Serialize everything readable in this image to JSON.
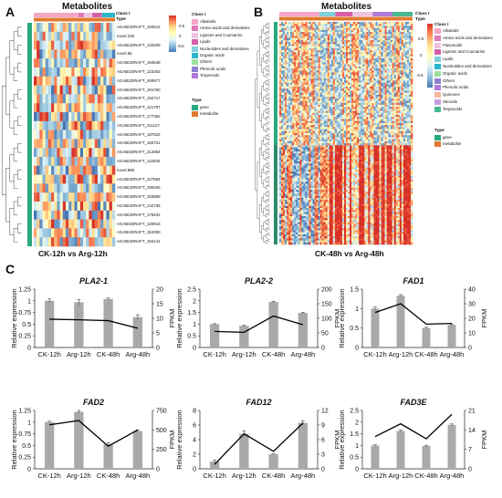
{
  "figure": {
    "panel_labels": [
      "A",
      "B",
      "C"
    ],
    "heatmap_a": {
      "title": "Metabolites",
      "caption": "CK-12h vs Arg-12h",
      "row_labels": [
        "AGABI2DRAFT_194512",
        "novel.235",
        "AGABI2DRAFT_120209",
        "novel.65",
        "AGABI2DRAFT_194648",
        "AGABI2DRAFT_123463",
        "AGABI2DRAFT_209977",
        "AGABI2DRAFT_181760",
        "AGABI2DRAFT_192717",
        "AGABI2DRAFT_121797",
        "AGABI2DRAFT_177352",
        "AGABI2DRAFT_211127",
        "AGABI2DRAFT_187622",
        "AGABI2DRAFT_183721",
        "AGABI2DRAFT_212854",
        "AGABI2DRAFT_116205",
        "novel.898",
        "AGABI2DRAFT_227554",
        "AGABI2DRAFT_190206",
        "AGABI2DRAFT_183809",
        "AGABI2DRAFT_142735",
        "AGABI2DRAFT_179422",
        "AGABI2DRAFT_120913",
        "AGABI2DRAFT_154300",
        "AGABI2DRAFT_194141"
      ],
      "scale_ticks": [
        "0.5",
        "0",
        "-0.5"
      ],
      "legend_class_title": "Class I",
      "legend_class_header": "Type",
      "classes": [
        "Alkaloids",
        "Amino acids and derivatives",
        "Lignans and Coumarins",
        "Lipids",
        "Nucleotides and derivatives",
        "Organic acids",
        "Others",
        "Phenolic acids",
        "Terpenoids"
      ],
      "type_title": "Type",
      "types": [
        "gene",
        "metabolite"
      ]
    },
    "heatmap_b": {
      "title": "Metabolites",
      "caption": "CK-48h vs Arg-48h",
      "scale_ticks": [
        "0.5",
        "0",
        "-0.5"
      ],
      "legend_class_title": "Class I",
      "legend_class_header": "Type",
      "classes": [
        "Alkaloids",
        "Amino acids and derivatives",
        "Flavonoids",
        "Lignans and Coumarins",
        "Lipids",
        "Nucleotides and derivatives",
        "Organic acids",
        "Others",
        "Phenolic acids",
        "Quinones",
        "Steroids",
        "Terpenoids"
      ],
      "type_title": "Type",
      "types": [
        "gene",
        "metabolite"
      ]
    },
    "colors": {
      "class_colors": [
        "#f4a6c6",
        "#e07ab8",
        "#f0c4e0",
        "#d65fa8",
        "#7fd0dc",
        "#29b6c8",
        "#9ae0a0",
        "#8f7fd0",
        "#b07ad8",
        "#f5b7a0",
        "#c8a0e0",
        "#4ab890"
      ],
      "gene_type": "#2aa880",
      "metabolite_type": "#e07a30",
      "bar": "#a9a9a9",
      "line": "#000000"
    }
  },
  "chart_data": [
    {
      "type": "bar",
      "title": "PLA2-1",
      "categories": [
        "CK-12h",
        "Arg-12h",
        "CK-48h",
        "Arg-48h"
      ],
      "series": [
        {
          "name": "Relative expression",
          "values": [
            1.0,
            0.97,
            1.04,
            0.65
          ],
          "errors": [
            0.04,
            0.06,
            0.02,
            0.05
          ]
        },
        {
          "name": "FPKM",
          "values": [
            9.7,
            9.5,
            9.2,
            6.6
          ]
        }
      ],
      "ylabel": "Relative expression",
      "y2label": "FPKM",
      "ylim": [
        0,
        1.25
      ],
      "yticks": [
        "0",
        "0.25",
        "0.5",
        "0.75",
        "1",
        "1.25"
      ],
      "y2lim": [
        0,
        20
      ],
      "y2ticks": [
        "0",
        "5",
        "10",
        "15",
        "20"
      ]
    },
    {
      "type": "bar",
      "title": "PLA2-2",
      "categories": [
        "CK-12h",
        "Arg-12h",
        "CK-48h",
        "Arg-48h"
      ],
      "series": [
        {
          "name": "Relative expression",
          "values": [
            1.0,
            0.93,
            1.95,
            1.48
          ],
          "errors": [
            0.02,
            0.03,
            0.03,
            0.03
          ]
        },
        {
          "name": "FPKM",
          "values": [
            55,
            52,
            108,
            78
          ]
        }
      ],
      "ylabel": "Relative expression",
      "y2label": "FPKM",
      "ylim": [
        0,
        2.5
      ],
      "yticks": [
        "0",
        "0.5",
        "1",
        "1.5",
        "2",
        "2.5"
      ],
      "y2lim": [
        0,
        200
      ],
      "y2ticks": [
        "0",
        "50",
        "100",
        "150",
        "200"
      ]
    },
    {
      "type": "bar",
      "title": "FAD1",
      "categories": [
        "CK-12h",
        "Arg-12h",
        "CK-48h",
        "Arg-48h"
      ],
      "series": [
        {
          "name": "Relative expression",
          "values": [
            1.0,
            1.33,
            0.5,
            0.58
          ],
          "errors": [
            0.04,
            0.03,
            0.02,
            0.02
          ]
        },
        {
          "name": "FPKM",
          "values": [
            24,
            30,
            16,
            16.5
          ]
        }
      ],
      "ylabel": "Relative expression",
      "y2label": "FPKM",
      "ylim": [
        0,
        1.5
      ],
      "yticks": [
        "0",
        "0.5",
        "1",
        "1.5"
      ],
      "y2lim": [
        0,
        40
      ],
      "y2ticks": [
        "0",
        "10",
        "20",
        "30",
        "40"
      ]
    },
    {
      "type": "bar",
      "title": "FAD2",
      "categories": [
        "CK-12h",
        "Arg-12h",
        "CK-48h",
        "Arg-48h"
      ],
      "series": [
        {
          "name": "Relative expression",
          "values": [
            1.0,
            1.22,
            0.53,
            0.81
          ],
          "errors": [
            0.02,
            0.03,
            0.03,
            0.02
          ]
        },
        {
          "name": "FPKM",
          "values": [
            565,
            620,
            290,
            500
          ]
        }
      ],
      "ylabel": "Relative expression",
      "y2label": "FPKM",
      "ylim": [
        0,
        1.25
      ],
      "yticks": [
        "0",
        "0.25",
        "0.5",
        "0.75",
        "1",
        "1.25"
      ],
      "y2lim": [
        0,
        750
      ],
      "y2ticks": [
        "0",
        "250",
        "500",
        "750"
      ]
    },
    {
      "type": "bar",
      "title": "FAD12",
      "categories": [
        "CK-12h",
        "Arg-12h",
        "CK-48h",
        "Arg-48h"
      ],
      "series": [
        {
          "name": "Relative expression",
          "values": [
            1.0,
            4.8,
            2.0,
            6.3
          ],
          "errors": [
            0.2,
            0.4,
            0.1,
            0.3
          ]
        },
        {
          "name": "FPKM",
          "values": [
            0.9,
            7.2,
            3.6,
            9.4
          ]
        }
      ],
      "ylabel": "Relative expression",
      "y2label": "FPKM",
      "ylim": [
        0,
        8
      ],
      "yticks": [
        "0",
        "2",
        "4",
        "6",
        "8"
      ],
      "y2lim": [
        0,
        12
      ],
      "y2ticks": [
        "0",
        "3",
        "6",
        "9",
        "12"
      ]
    },
    {
      "type": "bar",
      "title": "FAD3E",
      "categories": [
        "CK-12h",
        "Arg-12h",
        "CK-48h",
        "Arg-48h"
      ],
      "series": [
        {
          "name": "Relative expression",
          "values": [
            1.0,
            1.62,
            0.98,
            1.88
          ],
          "errors": [
            0.03,
            0.05,
            0.03,
            0.04
          ]
        },
        {
          "name": "FPKM",
          "values": [
            11.6,
            16.2,
            10.8,
            19.6
          ]
        }
      ],
      "ylabel": "Relative expression",
      "y2label": "FPKM",
      "ylim": [
        0,
        2.5
      ],
      "yticks": [
        "0",
        "0.5",
        "1",
        "1.5",
        "2",
        "2.5"
      ],
      "y2lim": [
        0,
        21
      ],
      "y2ticks": [
        "0",
        "7",
        "14",
        "21"
      ]
    }
  ]
}
